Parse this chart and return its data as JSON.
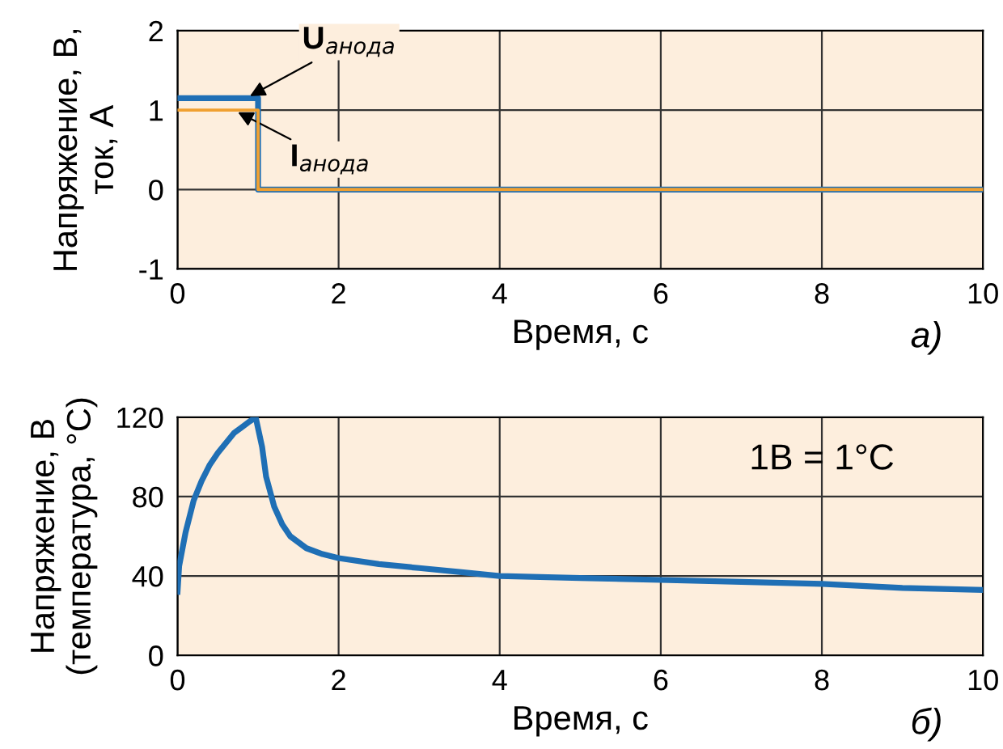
{
  "chart_data": [
    {
      "type": "step",
      "xlabel": "Время, с",
      "ylabel": "Напряжение, В,\nток, А",
      "xlim": [
        0,
        10
      ],
      "ylim": [
        -1,
        2
      ],
      "xticks": [
        0,
        2,
        4,
        6,
        8,
        10
      ],
      "yticks": [
        -1,
        0,
        1,
        2
      ],
      "grid": true,
      "legend": false,
      "x": [
        0,
        1,
        10
      ],
      "series": [
        {
          "name": "U$_{анода}$",
          "color": "#1f6fb5",
          "values": [
            1.15,
            0,
            0
          ]
        },
        {
          "name": "I$_{анода}$",
          "color": "#f0a030",
          "values": [
            1.0,
            0,
            0
          ]
        }
      ],
      "annotations": [
        "а)"
      ]
    },
    {
      "type": "line",
      "xlabel": "Время, с",
      "ylabel": "Напряжение, В\n(температура, °C)",
      "xlim": [
        0,
        10
      ],
      "ylim": [
        0,
        120
      ],
      "xticks": [
        0,
        2,
        4,
        6,
        8,
        10
      ],
      "yticks": [
        0,
        40,
        80,
        120
      ],
      "grid": true,
      "x": [
        0,
        0.02,
        0.1,
        0.2,
        0.3,
        0.4,
        0.5,
        0.6,
        0.7,
        0.8,
        0.9,
        0.97,
        1.05,
        1.1,
        1.2,
        1.3,
        1.4,
        1.6,
        1.8,
        2,
        2.5,
        3,
        3.5,
        4,
        5,
        6,
        7,
        8,
        9,
        10
      ],
      "series": [
        {
          "color": "#1f6fb5",
          "values": [
            32,
            45,
            62,
            78,
            88,
            96,
            102,
            107,
            112,
            115,
            118,
            120,
            105,
            90,
            75,
            66,
            60,
            54,
            51,
            49,
            46,
            44,
            42,
            40,
            39,
            38,
            37,
            36,
            34,
            33
          ]
        }
      ],
      "annotations": [
        "1В = 1°C",
        "б)"
      ]
    }
  ]
}
